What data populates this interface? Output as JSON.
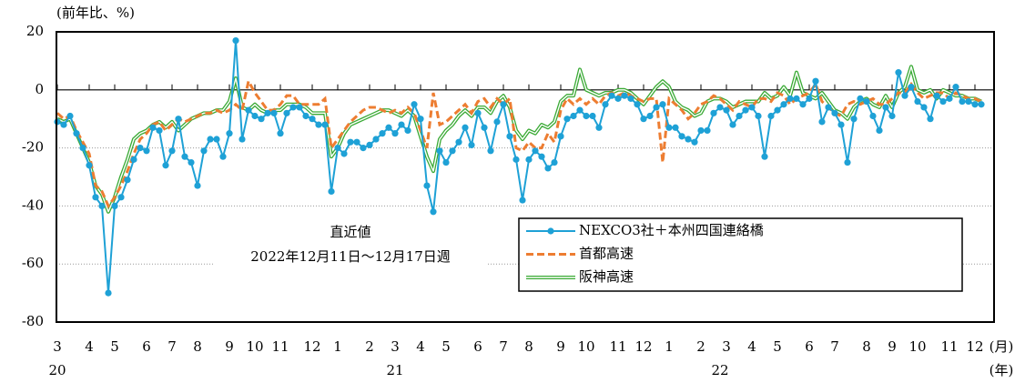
{
  "chart_data": {
    "type": "line",
    "y_label": "(前年比、%)",
    "x_unit_label": "(月)",
    "year_unit_label": "(年)",
    "annotation": {
      "title": "直近値",
      "text": "2022年12月11日～12月17日週"
    },
    "ylim": [
      -80,
      20
    ],
    "yticks": [
      20,
      0,
      -20,
      -40,
      -60,
      -80
    ],
    "grid": true,
    "categories": [
      "3",
      null,
      null,
      null,
      null,
      "4",
      null,
      null,
      null,
      "5",
      null,
      null,
      null,
      null,
      "6",
      null,
      null,
      null,
      "7",
      null,
      null,
      null,
      "8",
      null,
      null,
      null,
      null,
      "9",
      null,
      null,
      null,
      "10",
      null,
      null,
      null,
      "11",
      null,
      null,
      null,
      null,
      "12",
      null,
      null,
      null,
      "1",
      null,
      null,
      null,
      null,
      "2",
      null,
      null,
      null,
      "3",
      null,
      null,
      null,
      "4",
      null,
      null,
      null,
      "5",
      null,
      null,
      null,
      null,
      "6",
      null,
      null,
      null,
      "7",
      null,
      null,
      null,
      "8",
      null,
      null,
      null,
      null,
      "9",
      null,
      null,
      null,
      "10",
      null,
      null,
      null,
      null,
      "11",
      null,
      null,
      null,
      "12",
      null,
      null,
      null,
      "1",
      null,
      null,
      null,
      null,
      "2",
      null,
      null,
      null,
      "3",
      null,
      null,
      null,
      "4",
      null,
      null,
      null,
      "5",
      null,
      null,
      null,
      null,
      "6",
      null,
      null,
      null,
      "7",
      null,
      null,
      null,
      null,
      "8",
      null,
      null,
      null,
      "9",
      null,
      null,
      null,
      "10",
      null,
      null,
      null,
      null,
      "11",
      null,
      null,
      null,
      "12",
      null
    ],
    "years": [
      "20",
      null,
      null,
      null,
      null,
      null,
      null,
      null,
      null,
      null,
      null,
      null,
      null,
      null,
      null,
      null,
      null,
      null,
      null,
      null,
      null,
      null,
      null,
      null,
      null,
      null,
      null,
      null,
      null,
      null,
      null,
      null,
      null,
      null,
      null,
      null,
      null,
      null,
      null,
      null,
      null,
      null,
      null,
      null,
      null,
      null,
      null,
      null,
      null,
      null,
      null,
      null,
      null,
      "21",
      null,
      null,
      null,
      null,
      null,
      null,
      null,
      null,
      null,
      null,
      null,
      null,
      null,
      null,
      null,
      null,
      null,
      null,
      null,
      null,
      null,
      null,
      null,
      null,
      null,
      null,
      null,
      null,
      null,
      null,
      null,
      null,
      null,
      null,
      null,
      null,
      null,
      null,
      null,
      null,
      null,
      null,
      null,
      null,
      null,
      null,
      null,
      null,
      null,
      null,
      "22",
      null,
      null,
      null,
      null,
      null,
      null,
      null,
      null,
      null,
      null,
      null,
      null,
      null,
      null,
      null,
      null,
      null,
      null,
      null,
      null,
      null,
      null,
      null,
      null,
      null,
      null,
      null,
      null,
      null,
      null,
      null,
      null,
      null,
      null,
      null,
      null,
      null,
      null,
      null,
      null
    ],
    "series": [
      {
        "name": "NEXCO3社＋本州四国連絡橋",
        "color": "#1ea1d6",
        "style": "marker",
        "values": [
          -11,
          -12,
          -9,
          -15,
          -20,
          -26,
          -37,
          -40,
          -70,
          -40,
          -37,
          -31,
          -24,
          -20,
          -21,
          -13,
          -14,
          -26,
          -21,
          -10,
          -23,
          -25,
          -33,
          -21,
          -17,
          -17,
          -23,
          -15,
          17,
          -17,
          -7,
          -9,
          -10,
          -8,
          -8,
          -15,
          -8,
          -6,
          -6,
          -9,
          -10,
          -12,
          -12,
          -35,
          -20,
          -22,
          -18,
          -18,
          -20,
          -19,
          -17,
          -15,
          -13,
          -15,
          -12,
          -14,
          -5,
          -10,
          -33,
          -42,
          -21,
          -25,
          -21,
          -18,
          -13,
          -19,
          -8,
          -13,
          -21,
          -11,
          -5,
          -16,
          -24,
          -38,
          -24,
          -21,
          -23,
          -27,
          -25,
          -16,
          -10,
          -9,
          -7,
          -9,
          -9,
          -13,
          -5,
          -2,
          -3,
          -2,
          -3,
          -5,
          -10,
          -9,
          -6,
          -5,
          -13,
          -13,
          -16,
          -17,
          -18,
          -14,
          -14,
          -8,
          -6,
          -7,
          -12,
          -9,
          -7,
          -6,
          -9,
          -23,
          -9,
          -7,
          -5,
          -3,
          -3,
          -5,
          -3,
          3,
          -11,
          -6,
          -8,
          -12,
          -25,
          -10,
          -3,
          -4,
          -9,
          -14,
          -6,
          -9,
          6,
          -2,
          1,
          -4,
          -6,
          -10,
          -2,
          -4,
          -3,
          1,
          -4,
          -4,
          -5,
          -5
        ]
      },
      {
        "name": "首都高速",
        "color": "#ed7d31",
        "style": "dashed",
        "values": [
          -8,
          -10,
          -9,
          -14,
          -18,
          -22,
          -33,
          -35,
          -40,
          -37,
          -33,
          -28,
          -22,
          -17,
          -15,
          -12,
          -11,
          -14,
          -12,
          -10,
          -11,
          -10,
          -9,
          -8,
          -8,
          -7,
          -8,
          -7,
          -5,
          -7,
          3,
          -1,
          -4,
          -7,
          -7,
          -5,
          -2,
          -2,
          -5,
          -5,
          -5,
          -5,
          -3,
          -20,
          -17,
          -14,
          -11,
          -9,
          -7,
          -6,
          -6,
          -7,
          -8,
          -7,
          -8,
          -6,
          -8,
          -14,
          -20,
          -1,
          -12,
          -11,
          -9,
          -7,
          -5,
          -8,
          -4,
          -3,
          -6,
          -3,
          -5,
          -3,
          -20,
          -21,
          -18,
          -20,
          -20,
          -15,
          -18,
          -7,
          -3,
          -5,
          -3,
          -5,
          -3,
          -5,
          -2,
          -1,
          -2,
          -1,
          -2,
          -3,
          -4,
          -3,
          -3,
          -25,
          -3,
          -5,
          -7,
          -10,
          -8,
          -5,
          -4,
          -2,
          -3,
          -5,
          -7,
          -4,
          -5,
          -6,
          -3,
          -3,
          -4,
          -1,
          -2,
          -5,
          -3,
          -2,
          -1,
          2,
          -4,
          -6,
          -8,
          -9,
          -5,
          -4,
          -5,
          -4,
          -3,
          -5,
          -5,
          -3,
          -1,
          -1,
          2,
          -1,
          -3,
          -2,
          -1,
          -1,
          -3,
          -1,
          -2,
          -3,
          -3,
          -4
        ]
      },
      {
        "name": "阪神高速",
        "color": "#3aaa35",
        "style": "double",
        "values": [
          -10,
          -11,
          -10,
          -15,
          -20,
          -25,
          -33,
          -36,
          -42,
          -37,
          -30,
          -24,
          -17,
          -15,
          -14,
          -12,
          -11,
          -13,
          -11,
          -14,
          -12,
          -10,
          -9,
          -8,
          -8,
          -7,
          -7,
          -4,
          4,
          -6,
          -7,
          -5,
          -7,
          -8,
          -7,
          -7,
          -5,
          -5,
          -5,
          -6,
          -8,
          -8,
          -8,
          -23,
          -20,
          -15,
          -12,
          -11,
          -10,
          -9,
          -8,
          -7,
          -7,
          -8,
          -9,
          -7,
          -9,
          -16,
          -23,
          -28,
          -17,
          -14,
          -12,
          -9,
          -7,
          -9,
          -6,
          -6,
          -8,
          -4,
          -2,
          -6,
          -14,
          -17,
          -14,
          -15,
          -12,
          -13,
          -11,
          -4,
          -2,
          -2,
          7,
          0,
          -1,
          -2,
          -1,
          -1,
          0,
          0,
          -1,
          -3,
          -5,
          -2,
          1,
          3,
          1,
          -4,
          -6,
          -7,
          -9,
          -8,
          -4,
          -3,
          -3,
          -4,
          -6,
          -5,
          -4,
          -4,
          -4,
          -1,
          -3,
          -2,
          1,
          -2,
          6,
          -1,
          -2,
          -3,
          -1,
          -4,
          -7,
          -8,
          -10,
          -6,
          -4,
          -3,
          -5,
          -6,
          -2,
          -6,
          -1,
          1,
          8,
          0,
          -1,
          0,
          -3,
          0,
          -1,
          -2,
          -2,
          -3,
          -3,
          -4
        ]
      }
    ]
  }
}
